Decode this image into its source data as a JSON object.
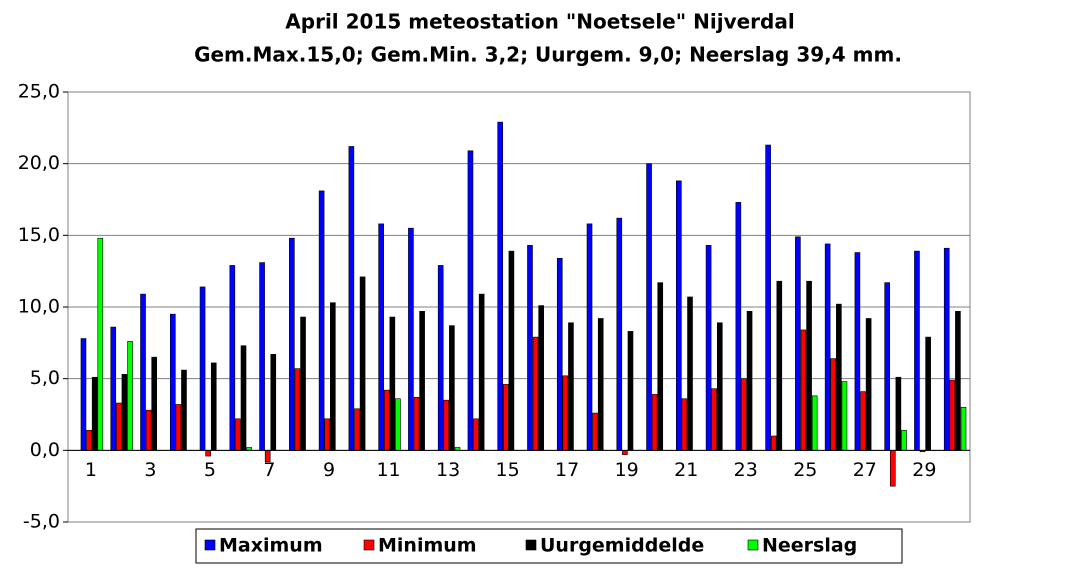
{
  "chart_data": {
    "type": "bar",
    "title": "April 2015 meteostation \"Noetsele\" Nijverdal",
    "subtitle": "Gem.Max.15,0;  Gem.Min. 3,2;  Uurgem. 9,0; Neerslag 39,4 mm.",
    "categories": [
      "1",
      null,
      "3",
      null,
      "5",
      null,
      "7",
      null,
      "9",
      null,
      "11",
      null,
      "13",
      null,
      "15",
      null,
      "17",
      null,
      "19",
      null,
      "21",
      null,
      "23",
      null,
      "25",
      null,
      "27",
      null,
      "29",
      null
    ],
    "series": [
      {
        "name": "Maximum",
        "color": "#0000ff",
        "values": [
          7.8,
          8.6,
          10.9,
          9.5,
          11.4,
          12.9,
          13.1,
          14.8,
          18.1,
          21.2,
          15.8,
          15.5,
          12.9,
          20.9,
          22.9,
          14.3,
          13.4,
          15.8,
          16.2,
          20.0,
          18.8,
          14.3,
          17.3,
          21.3,
          14.9,
          14.4,
          13.8,
          11.7,
          13.9,
          14.1
        ]
      },
      {
        "name": "Minimum",
        "color": "#ff0000",
        "values": [
          1.4,
          3.3,
          2.8,
          3.2,
          -0.4,
          2.2,
          -0.8,
          5.7,
          2.2,
          2.9,
          4.2,
          3.7,
          3.5,
          2.2,
          4.6,
          7.9,
          5.2,
          2.6,
          -0.3,
          3.9,
          3.6,
          4.3,
          5.0,
          1.0,
          8.4,
          6.4,
          4.1,
          -2.5,
          -0.1,
          4.9
        ]
      },
      {
        "name": "Uurgemiddelde",
        "color": "#000000",
        "values": [
          5.1,
          5.3,
          6.5,
          5.6,
          6.1,
          7.3,
          6.7,
          9.3,
          10.3,
          12.1,
          9.3,
          9.7,
          8.7,
          10.9,
          13.9,
          10.1,
          8.9,
          9.2,
          8.3,
          11.7,
          10.7,
          8.9,
          9.7,
          11.8,
          11.8,
          10.2,
          9.2,
          5.1,
          7.9,
          9.7
        ]
      },
      {
        "name": "Neerslag",
        "color": "#00ff00",
        "values": [
          14.8,
          7.6,
          0,
          0,
          0,
          0.2,
          0,
          0,
          0,
          0,
          3.6,
          0,
          0.2,
          0,
          0,
          0,
          0,
          0,
          0,
          0,
          0,
          0,
          0,
          0,
          3.8,
          4.8,
          0,
          1.4,
          0,
          3.0
        ]
      }
    ],
    "ylim": [
      -5,
      25
    ],
    "yticks": [
      {
        "value": -5,
        "label": "-5,0"
      },
      {
        "value": 0,
        "label": "0,0"
      },
      {
        "value": 5,
        "label": "5,0"
      },
      {
        "value": 10,
        "label": "10,0"
      },
      {
        "value": 15,
        "label": "15,0"
      },
      {
        "value": 20,
        "label": "20,0"
      },
      {
        "value": 25,
        "label": "25,0"
      }
    ],
    "grid": true,
    "legend": "bottom"
  }
}
